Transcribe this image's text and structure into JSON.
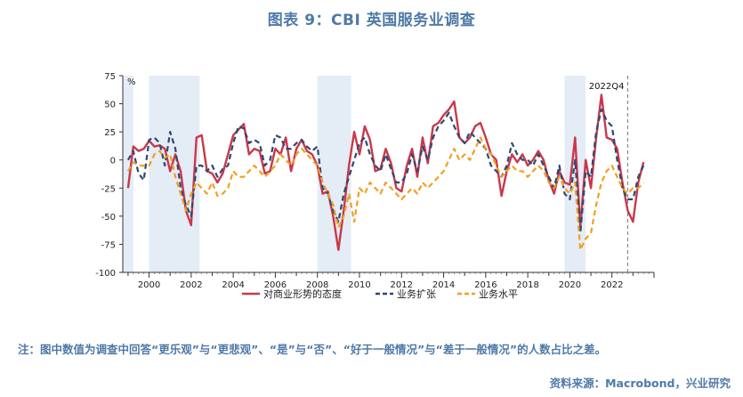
{
  "title": "图表 9：CBI 英国服务业调查",
  "note": "注：图中数值为调查中回答“更乐观”与“更悲观”、“是”与“否”、“好于一般情况”与“差于一般情况”的人数占比之差。",
  "source": "资料来源：Macrobond，兴业研究",
  "chart_data": {
    "type": "line",
    "unit_label": "%",
    "annotation": "2022Q4",
    "annotation_x": 2022.75,
    "xlim": [
      1998.75,
      2024
    ],
    "ylim": [
      -100,
      75
    ],
    "x_ticks": [
      2000,
      2002,
      2004,
      2006,
      2008,
      2010,
      2012,
      2014,
      2016,
      2018,
      2020,
      2022
    ],
    "x_tick_labels": [
      "2000",
      "2002",
      "2004",
      "2006",
      "2008",
      "2010",
      "2012",
      "2014",
      "2016",
      "2018",
      "2020",
      "2022"
    ],
    "y_ticks": [
      75,
      50,
      25,
      0,
      -25,
      -50,
      -75,
      -100
    ],
    "y_tick_labels": [
      "75",
      "50",
      "25",
      "0",
      "-25",
      "-50",
      "-75",
      "-100"
    ],
    "recession_bands": [
      [
        1998.75,
        1999.25
      ],
      [
        2000.0,
        2002.4
      ],
      [
        2008.0,
        2009.6
      ],
      [
        2019.75,
        2020.75
      ]
    ],
    "legend_position": "bottom",
    "series": [
      {
        "name": "对商业形势的态度",
        "color": "#c9384a",
        "style": "solid",
        "points": [
          [
            1999.0,
            -25
          ],
          [
            1999.25,
            12
          ],
          [
            1999.5,
            8
          ],
          [
            1999.75,
            10
          ],
          [
            2000.0,
            17
          ],
          [
            2000.25,
            12
          ],
          [
            2000.5,
            13
          ],
          [
            2000.75,
            10
          ],
          [
            2001.0,
            -10
          ],
          [
            2001.25,
            5
          ],
          [
            2001.5,
            -10
          ],
          [
            2001.75,
            -45
          ],
          [
            2002.0,
            -58
          ],
          [
            2002.25,
            20
          ],
          [
            2002.5,
            22
          ],
          [
            2002.75,
            -10
          ],
          [
            2003.0,
            -12
          ],
          [
            2003.25,
            -20
          ],
          [
            2003.5,
            -12
          ],
          [
            2003.75,
            5
          ],
          [
            2004.0,
            22
          ],
          [
            2004.25,
            27
          ],
          [
            2004.5,
            32
          ],
          [
            2004.75,
            5
          ],
          [
            2005.0,
            10
          ],
          [
            2005.25,
            8
          ],
          [
            2005.5,
            -12
          ],
          [
            2005.75,
            -10
          ],
          [
            2006.0,
            10
          ],
          [
            2006.25,
            5
          ],
          [
            2006.5,
            20
          ],
          [
            2006.75,
            -10
          ],
          [
            2007.0,
            10
          ],
          [
            2007.25,
            18
          ],
          [
            2007.5,
            8
          ],
          [
            2007.75,
            5
          ],
          [
            2008.0,
            -5
          ],
          [
            2008.25,
            -30
          ],
          [
            2008.5,
            -28
          ],
          [
            2008.75,
            -50
          ],
          [
            2009.0,
            -80
          ],
          [
            2009.25,
            -45
          ],
          [
            2009.5,
            -5
          ],
          [
            2009.75,
            25
          ],
          [
            2010.0,
            5
          ],
          [
            2010.25,
            30
          ],
          [
            2010.5,
            18
          ],
          [
            2010.75,
            -10
          ],
          [
            2011.0,
            -8
          ],
          [
            2011.25,
            10
          ],
          [
            2011.5,
            -3
          ],
          [
            2011.75,
            -25
          ],
          [
            2012.0,
            -28
          ],
          [
            2012.25,
            -5
          ],
          [
            2012.5,
            10
          ],
          [
            2012.75,
            -15
          ],
          [
            2013.0,
            20
          ],
          [
            2013.25,
            -3
          ],
          [
            2013.5,
            30
          ],
          [
            2013.75,
            33
          ],
          [
            2014.0,
            40
          ],
          [
            2014.25,
            45
          ],
          [
            2014.5,
            52
          ],
          [
            2014.75,
            20
          ],
          [
            2015.0,
            15
          ],
          [
            2015.25,
            20
          ],
          [
            2015.5,
            30
          ],
          [
            2015.75,
            33
          ],
          [
            2016.0,
            20
          ],
          [
            2016.25,
            5
          ],
          [
            2016.5,
            0
          ],
          [
            2016.75,
            -32
          ],
          [
            2017.0,
            -10
          ],
          [
            2017.25,
            5
          ],
          [
            2017.5,
            -2
          ],
          [
            2017.75,
            5
          ],
          [
            2018.0,
            -5
          ],
          [
            2018.25,
            0
          ],
          [
            2018.5,
            8
          ],
          [
            2018.75,
            0
          ],
          [
            2019.0,
            -18
          ],
          [
            2019.25,
            -30
          ],
          [
            2019.5,
            -10
          ],
          [
            2019.75,
            -20
          ],
          [
            2020.0,
            -22
          ],
          [
            2020.25,
            20
          ],
          [
            2020.5,
            -60
          ],
          [
            2020.75,
            0
          ],
          [
            2021.0,
            -25
          ],
          [
            2021.25,
            20
          ],
          [
            2021.5,
            58
          ],
          [
            2021.75,
            20
          ],
          [
            2022.0,
            18
          ],
          [
            2022.25,
            10
          ],
          [
            2022.5,
            -20
          ],
          [
            2022.75,
            -45
          ],
          [
            2023.0,
            -55
          ],
          [
            2023.25,
            -20
          ],
          [
            2023.5,
            -2
          ]
        ]
      },
      {
        "name": "业务扩张",
        "color": "#2f4872",
        "style": "dashed",
        "points": [
          [
            1999.0,
            0
          ],
          [
            1999.25,
            8
          ],
          [
            1999.5,
            -12
          ],
          [
            1999.75,
            -18
          ],
          [
            2000.0,
            18
          ],
          [
            2000.25,
            20
          ],
          [
            2000.5,
            15
          ],
          [
            2000.75,
            -5
          ],
          [
            2001.0,
            25
          ],
          [
            2001.25,
            10
          ],
          [
            2001.5,
            -25
          ],
          [
            2001.75,
            -40
          ],
          [
            2002.0,
            -50
          ],
          [
            2002.25,
            -5
          ],
          [
            2002.5,
            -5
          ],
          [
            2002.75,
            -10
          ],
          [
            2003.0,
            -5
          ],
          [
            2003.25,
            -15
          ],
          [
            2003.5,
            -8
          ],
          [
            2003.75,
            -5
          ],
          [
            2004.0,
            15
          ],
          [
            2004.25,
            30
          ],
          [
            2004.5,
            28
          ],
          [
            2004.75,
            15
          ],
          [
            2005.0,
            18
          ],
          [
            2005.25,
            15
          ],
          [
            2005.5,
            -5
          ],
          [
            2005.75,
            0
          ],
          [
            2006.0,
            22
          ],
          [
            2006.25,
            20
          ],
          [
            2006.5,
            10
          ],
          [
            2006.75,
            10
          ],
          [
            2007.0,
            15
          ],
          [
            2007.25,
            18
          ],
          [
            2007.5,
            12
          ],
          [
            2007.75,
            8
          ],
          [
            2008.0,
            12
          ],
          [
            2008.25,
            -25
          ],
          [
            2008.5,
            -30
          ],
          [
            2008.75,
            -45
          ],
          [
            2009.0,
            -55
          ],
          [
            2009.25,
            -30
          ],
          [
            2009.5,
            -15
          ],
          [
            2009.75,
            0
          ],
          [
            2010.0,
            15
          ],
          [
            2010.25,
            20
          ],
          [
            2010.5,
            5
          ],
          [
            2010.75,
            -5
          ],
          [
            2011.0,
            -10
          ],
          [
            2011.25,
            5
          ],
          [
            2011.5,
            -8
          ],
          [
            2011.75,
            -20
          ],
          [
            2012.0,
            -20
          ],
          [
            2012.25,
            -12
          ],
          [
            2012.5,
            5
          ],
          [
            2012.75,
            -10
          ],
          [
            2013.0,
            12
          ],
          [
            2013.25,
            0
          ],
          [
            2013.5,
            20
          ],
          [
            2013.75,
            30
          ],
          [
            2014.0,
            35
          ],
          [
            2014.25,
            42
          ],
          [
            2014.5,
            30
          ],
          [
            2014.75,
            20
          ],
          [
            2015.0,
            15
          ],
          [
            2015.25,
            25
          ],
          [
            2015.5,
            20
          ],
          [
            2015.75,
            15
          ],
          [
            2016.0,
            10
          ],
          [
            2016.25,
            -5
          ],
          [
            2016.5,
            -10
          ],
          [
            2016.75,
            -15
          ],
          [
            2017.0,
            -5
          ],
          [
            2017.25,
            15
          ],
          [
            2017.5,
            5
          ],
          [
            2017.75,
            0
          ],
          [
            2018.0,
            0
          ],
          [
            2018.25,
            -5
          ],
          [
            2018.5,
            5
          ],
          [
            2018.75,
            -5
          ],
          [
            2019.0,
            -15
          ],
          [
            2019.25,
            -25
          ],
          [
            2019.5,
            -5
          ],
          [
            2019.75,
            -30
          ],
          [
            2020.0,
            -35
          ],
          [
            2020.25,
            0
          ],
          [
            2020.5,
            -65
          ],
          [
            2020.75,
            -10
          ],
          [
            2021.0,
            -15
          ],
          [
            2021.25,
            25
          ],
          [
            2021.5,
            45
          ],
          [
            2021.75,
            35
          ],
          [
            2022.0,
            30
          ],
          [
            2022.25,
            0
          ],
          [
            2022.5,
            -25
          ],
          [
            2022.75,
            -35
          ],
          [
            2023.0,
            -35
          ],
          [
            2023.25,
            -15
          ],
          [
            2023.5,
            -5
          ]
        ]
      },
      {
        "name": "业务水平",
        "color": "#f0a020",
        "style": "dashed",
        "points": [
          [
            1999.0,
            -10
          ],
          [
            1999.25,
            -2
          ],
          [
            1999.5,
            -5
          ],
          [
            1999.75,
            -5
          ],
          [
            2000.0,
            -5
          ],
          [
            2000.25,
            5
          ],
          [
            2000.5,
            8
          ],
          [
            2000.75,
            2
          ],
          [
            2001.0,
            5
          ],
          [
            2001.25,
            -15
          ],
          [
            2001.5,
            -30
          ],
          [
            2001.75,
            -45
          ],
          [
            2002.0,
            -30
          ],
          [
            2002.25,
            -20
          ],
          [
            2002.5,
            -25
          ],
          [
            2002.75,
            -30
          ],
          [
            2003.0,
            -20
          ],
          [
            2003.25,
            -32
          ],
          [
            2003.5,
            -30
          ],
          [
            2003.75,
            -25
          ],
          [
            2004.0,
            -10
          ],
          [
            2004.25,
            -15
          ],
          [
            2004.5,
            -15
          ],
          [
            2004.75,
            -10
          ],
          [
            2005.0,
            -5
          ],
          [
            2005.25,
            -10
          ],
          [
            2005.5,
            -15
          ],
          [
            2005.75,
            -10
          ],
          [
            2006.0,
            -5
          ],
          [
            2006.25,
            5
          ],
          [
            2006.5,
            0
          ],
          [
            2006.75,
            -5
          ],
          [
            2007.0,
            5
          ],
          [
            2007.25,
            10
          ],
          [
            2007.5,
            5
          ],
          [
            2007.75,
            0
          ],
          [
            2008.0,
            -5
          ],
          [
            2008.25,
            -20
          ],
          [
            2008.5,
            -30
          ],
          [
            2008.75,
            -40
          ],
          [
            2009.0,
            -60
          ],
          [
            2009.25,
            -50
          ],
          [
            2009.5,
            -30
          ],
          [
            2009.75,
            -55
          ],
          [
            2010.0,
            -25
          ],
          [
            2010.25,
            -30
          ],
          [
            2010.5,
            -20
          ],
          [
            2010.75,
            -25
          ],
          [
            2011.0,
            -30
          ],
          [
            2011.25,
            -20
          ],
          [
            2011.5,
            -25
          ],
          [
            2011.75,
            -30
          ],
          [
            2012.0,
            -35
          ],
          [
            2012.25,
            -30
          ],
          [
            2012.5,
            -25
          ],
          [
            2012.75,
            -30
          ],
          [
            2013.0,
            -20
          ],
          [
            2013.25,
            -25
          ],
          [
            2013.5,
            -20
          ],
          [
            2013.75,
            -15
          ],
          [
            2014.0,
            -10
          ],
          [
            2014.25,
            0
          ],
          [
            2014.5,
            10
          ],
          [
            2014.75,
            0
          ],
          [
            2015.0,
            5
          ],
          [
            2015.25,
            0
          ],
          [
            2015.5,
            10
          ],
          [
            2015.75,
            20
          ],
          [
            2016.0,
            10
          ],
          [
            2016.25,
            5
          ],
          [
            2016.5,
            -5
          ],
          [
            2016.75,
            -15
          ],
          [
            2017.0,
            -10
          ],
          [
            2017.25,
            -5
          ],
          [
            2017.5,
            -10
          ],
          [
            2017.75,
            -10
          ],
          [
            2018.0,
            -15
          ],
          [
            2018.25,
            -10
          ],
          [
            2018.5,
            -5
          ],
          [
            2018.75,
            -10
          ],
          [
            2019.0,
            -20
          ],
          [
            2019.25,
            -25
          ],
          [
            2019.5,
            -15
          ],
          [
            2019.75,
            -25
          ],
          [
            2020.0,
            -30
          ],
          [
            2020.25,
            -20
          ],
          [
            2020.5,
            -80
          ],
          [
            2020.75,
            -70
          ],
          [
            2021.0,
            -65
          ],
          [
            2021.25,
            -40
          ],
          [
            2021.5,
            -20
          ],
          [
            2021.75,
            -10
          ],
          [
            2022.0,
            -5
          ],
          [
            2022.25,
            -15
          ],
          [
            2022.5,
            -25
          ],
          [
            2022.75,
            -30
          ],
          [
            2023.0,
            -25
          ],
          [
            2023.25,
            -25
          ],
          [
            2023.5,
            -20
          ]
        ]
      }
    ]
  }
}
